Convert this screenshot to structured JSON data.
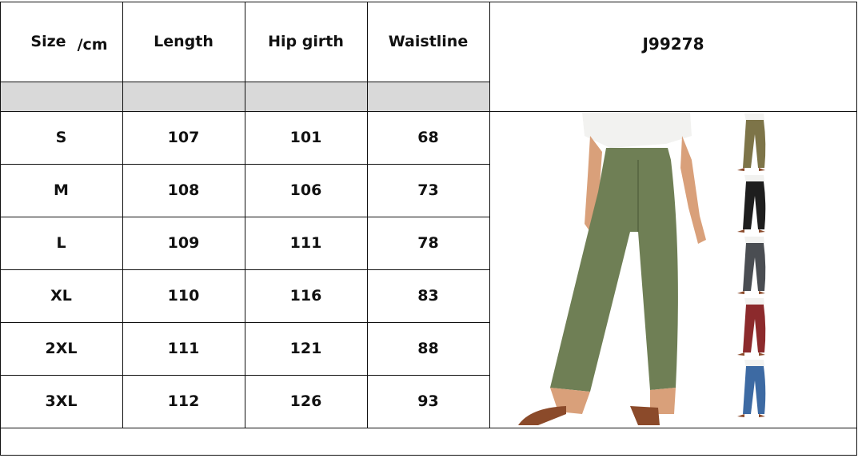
{
  "headers": {
    "size": "Size",
    "unit": "/cm",
    "length": "Length",
    "hip": "Hip girth",
    "waist": "Waistline"
  },
  "product_code": "J99278",
  "rows": [
    {
      "size": "S",
      "length": "107",
      "hip": "101",
      "waist": "68"
    },
    {
      "size": "M",
      "length": "108",
      "hip": "106",
      "waist": "73"
    },
    {
      "size": "L",
      "length": "109",
      "hip": "111",
      "waist": "78"
    },
    {
      "size": "XL",
      "length": "110",
      "hip": "116",
      "waist": "83"
    },
    {
      "size": "2XL",
      "length": "111",
      "hip": "121",
      "waist": "88"
    },
    {
      "size": "3XL",
      "length": "112",
      "hip": "126",
      "waist": "93"
    }
  ],
  "colors": {
    "main": "#6f7f55",
    "variants": [
      "#7d7448",
      "#1e1e1e",
      "#4a4d52",
      "#8c2a2c",
      "#3d6aa3"
    ],
    "header_fill": "#d9d9d9"
  }
}
